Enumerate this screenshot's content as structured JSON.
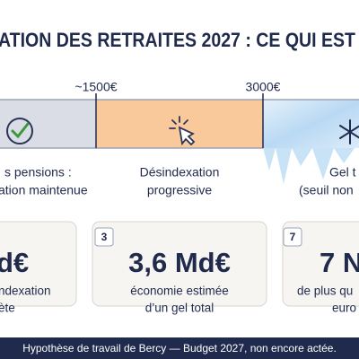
{
  "header": {
    "title": "ATION DES RETRAITES 2027 : CE QUI EST"
  },
  "scale": {
    "thresholds": [
      "~1500€",
      "3000€"
    ]
  },
  "segments": [
    {
      "lines": [
        "s pensions :",
        "ation maintenue"
      ]
    },
    {
      "lines": [
        "Désindexation",
        "progressive"
      ]
    },
    {
      "lines": [
        "Gel t",
        "(seuil non"
      ]
    }
  ],
  "cards": [
    {
      "value": "d€",
      "lines": [
        "ndexation",
        "ète"
      ]
    },
    {
      "badge": "3",
      "value": "3,6 Md€",
      "lines": [
        "économie estimée",
        "d’un gel total"
      ]
    },
    {
      "badge": "7",
      "value": "7 N",
      "lines": [
        "de plus qu",
        "euro"
      ]
    }
  ],
  "footer": {
    "note": "Hypothèse de travail de Bercy — Budget 2027, non encore actée."
  }
}
